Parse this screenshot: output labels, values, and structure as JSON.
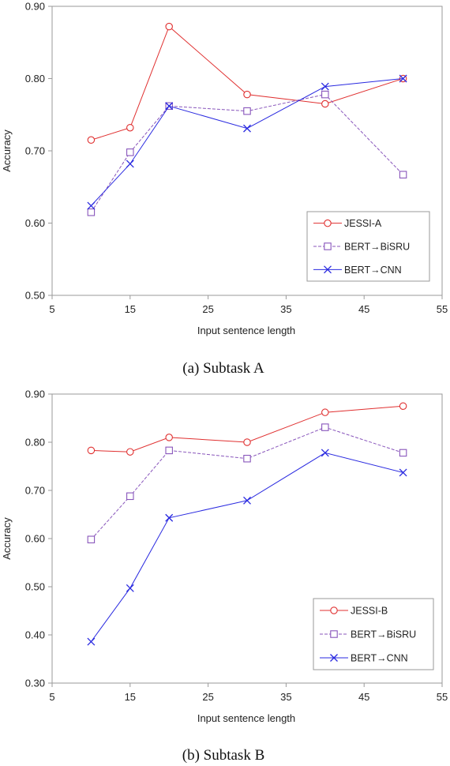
{
  "chart_data": [
    {
      "type": "line",
      "caption": "(a) Subtask A",
      "xlabel": "Input sentence length",
      "ylabel": "Accuracy",
      "xlim": [
        5,
        55
      ],
      "ylim": [
        0.5,
        0.9
      ],
      "x_ticks": [
        "5",
        "15",
        "25",
        "35",
        "45",
        "55"
      ],
      "y_ticks": [
        "0.50",
        "0.60",
        "0.70",
        "0.80",
        "0.90"
      ],
      "grid": false,
      "legend_position": "bottom-right",
      "x": [
        10,
        15,
        20,
        30,
        40,
        50
      ],
      "series": [
        {
          "name": "JESSI-A",
          "marker": "circle",
          "color": "#e03030",
          "dashed": false,
          "values": [
            0.715,
            0.732,
            0.872,
            0.778,
            0.765,
            0.8
          ]
        },
        {
          "name": "BERT→BiSRU",
          "marker": "square",
          "color": "#8855bb",
          "dashed": true,
          "values": [
            0.615,
            0.698,
            0.762,
            0.755,
            0.778,
            0.667
          ]
        },
        {
          "name": "BERT→CNN",
          "marker": "x",
          "color": "#2a2ae0",
          "dashed": false,
          "values": [
            0.624,
            0.682,
            0.762,
            0.731,
            0.789,
            0.8
          ]
        }
      ]
    },
    {
      "type": "line",
      "caption": "(b) Subtask B",
      "xlabel": "Input sentence length",
      "ylabel": "Accuracy",
      "xlim": [
        5,
        55
      ],
      "ylim": [
        0.3,
        0.9
      ],
      "x_ticks": [
        "5",
        "15",
        "25",
        "35",
        "45",
        "55"
      ],
      "y_ticks": [
        "0.30",
        "0.40",
        "0.50",
        "0.60",
        "0.70",
        "0.80",
        "0.90"
      ],
      "grid": false,
      "legend_position": "bottom-right",
      "x": [
        10,
        15,
        20,
        30,
        40,
        50
      ],
      "series": [
        {
          "name": "JESSI-B",
          "marker": "circle",
          "color": "#e03030",
          "dashed": false,
          "values": [
            0.783,
            0.78,
            0.81,
            0.8,
            0.862,
            0.875
          ]
        },
        {
          "name": "BERT→BiSRU",
          "marker": "square",
          "color": "#8855bb",
          "dashed": true,
          "values": [
            0.598,
            0.688,
            0.783,
            0.766,
            0.831,
            0.778
          ]
        },
        {
          "name": "BERT→CNN",
          "marker": "x",
          "color": "#2a2ae0",
          "dashed": false,
          "values": [
            0.386,
            0.497,
            0.643,
            0.679,
            0.778,
            0.737
          ]
        }
      ]
    }
  ]
}
